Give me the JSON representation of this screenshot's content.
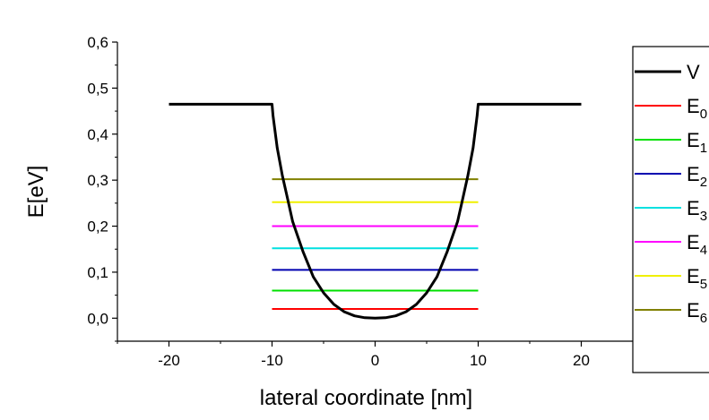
{
  "chart_data": {
    "type": "line",
    "xlabel": "lateral coordinate [nm]",
    "ylabel": "E[eV]",
    "xlim": [
      -25,
      25
    ],
    "ylim": [
      -0.05,
      0.6
    ],
    "x_ticks": [
      "-20",
      "-10",
      "0",
      "10",
      "20"
    ],
    "x_tick_values": [
      -20,
      -10,
      0,
      10,
      20
    ],
    "y_ticks": [
      "0,0",
      "0,1",
      "0,2",
      "0,3",
      "0,4",
      "0,5",
      "0,6"
    ],
    "y_tick_values": [
      0,
      0.1,
      0.2,
      0.3,
      0.4,
      0.5,
      0.6
    ],
    "grid": false,
    "legend_position": "right",
    "series": [
      {
        "name": "V",
        "color": "#000000",
        "x": [
          -20,
          -10,
          -9.9,
          -9.5,
          -9,
          -8.5,
          -8,
          -7,
          -6,
          -5,
          -4,
          -3,
          -2,
          -1,
          0,
          1,
          2,
          3,
          4,
          5,
          6,
          7,
          8,
          8.5,
          9,
          9.5,
          9.9,
          10,
          20
        ],
        "y": [
          0.465,
          0.465,
          0.44,
          0.37,
          0.31,
          0.26,
          0.21,
          0.145,
          0.09,
          0.055,
          0.03,
          0.014,
          0.005,
          0.001,
          0.0,
          0.001,
          0.005,
          0.014,
          0.03,
          0.055,
          0.09,
          0.145,
          0.21,
          0.26,
          0.31,
          0.37,
          0.44,
          0.465,
          0.465
        ]
      },
      {
        "name": "E0",
        "color": "#ff0000",
        "x": [
          -10,
          10
        ],
        "y": [
          0.02,
          0.02
        ]
      },
      {
        "name": "E1",
        "color": "#00e000",
        "x": [
          -10,
          10
        ],
        "y": [
          0.06,
          0.06
        ]
      },
      {
        "name": "E2",
        "color": "#0000b0",
        "x": [
          -10,
          10
        ],
        "y": [
          0.105,
          0.105
        ]
      },
      {
        "name": "E3",
        "color": "#00e0e0",
        "x": [
          -10,
          10
        ],
        "y": [
          0.152,
          0.152
        ]
      },
      {
        "name": "E4",
        "color": "#ff00ff",
        "x": [
          -10,
          10
        ],
        "y": [
          0.2,
          0.2
        ]
      },
      {
        "name": "E5",
        "color": "#f0f000",
        "x": [
          -10,
          10
        ],
        "y": [
          0.252,
          0.252
        ]
      },
      {
        "name": "E6",
        "color": "#808000",
        "x": [
          -10,
          10
        ],
        "y": [
          0.302,
          0.302
        ]
      }
    ]
  }
}
